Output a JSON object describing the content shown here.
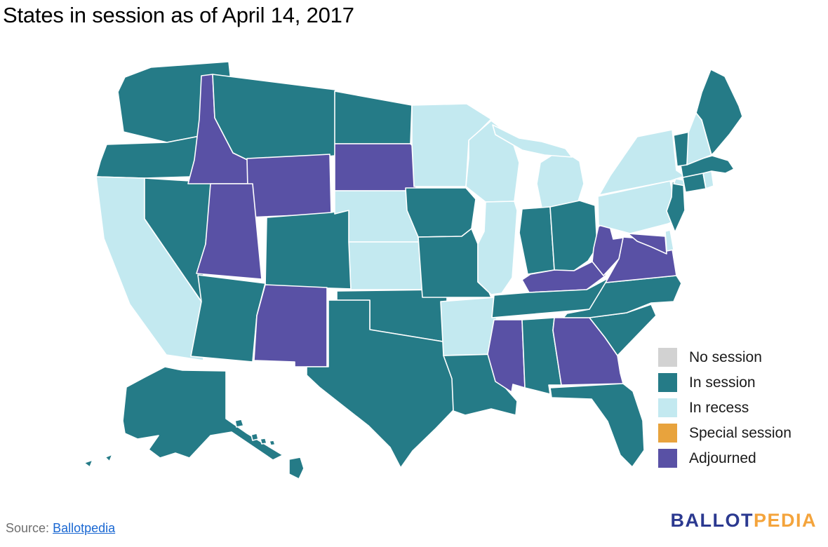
{
  "title": "States in session as of April 14, 2017",
  "legend": {
    "items": [
      {
        "key": "no_session",
        "label": "No session",
        "color": "#d2d2d2"
      },
      {
        "key": "in_session",
        "label": "In session",
        "color": "#257b87"
      },
      {
        "key": "in_recess",
        "label": "In recess",
        "color": "#c3e9f0"
      },
      {
        "key": "special_session",
        "label": "Special session",
        "color": "#e8a33d"
      },
      {
        "key": "adjourned",
        "label": "Adjourned",
        "color": "#5951a5"
      }
    ]
  },
  "map": {
    "border_color": "#ffffff",
    "states": [
      {
        "abbr": "WA",
        "name": "Washington",
        "status": "in_session"
      },
      {
        "abbr": "OR",
        "name": "Oregon",
        "status": "in_session"
      },
      {
        "abbr": "CA",
        "name": "California",
        "status": "in_recess"
      },
      {
        "abbr": "NV",
        "name": "Nevada",
        "status": "in_session"
      },
      {
        "abbr": "ID",
        "name": "Idaho",
        "status": "adjourned"
      },
      {
        "abbr": "MT",
        "name": "Montana",
        "status": "in_session"
      },
      {
        "abbr": "WY",
        "name": "Wyoming",
        "status": "adjourned"
      },
      {
        "abbr": "UT",
        "name": "Utah",
        "status": "adjourned"
      },
      {
        "abbr": "CO",
        "name": "Colorado",
        "status": "in_session"
      },
      {
        "abbr": "AZ",
        "name": "Arizona",
        "status": "in_session"
      },
      {
        "abbr": "NM",
        "name": "New Mexico",
        "status": "adjourned"
      },
      {
        "abbr": "ND",
        "name": "North Dakota",
        "status": "in_session"
      },
      {
        "abbr": "SD",
        "name": "South Dakota",
        "status": "adjourned"
      },
      {
        "abbr": "NE",
        "name": "Nebraska",
        "status": "in_recess"
      },
      {
        "abbr": "KS",
        "name": "Kansas",
        "status": "in_recess"
      },
      {
        "abbr": "OK",
        "name": "Oklahoma",
        "status": "in_session"
      },
      {
        "abbr": "TX",
        "name": "Texas",
        "status": "in_session"
      },
      {
        "abbr": "MN",
        "name": "Minnesota",
        "status": "in_recess"
      },
      {
        "abbr": "IA",
        "name": "Iowa",
        "status": "in_session"
      },
      {
        "abbr": "MO",
        "name": "Missouri",
        "status": "in_session"
      },
      {
        "abbr": "AR",
        "name": "Arkansas",
        "status": "in_recess"
      },
      {
        "abbr": "LA",
        "name": "Louisiana",
        "status": "in_session"
      },
      {
        "abbr": "WI",
        "name": "Wisconsin",
        "status": "in_recess"
      },
      {
        "abbr": "IL",
        "name": "Illinois",
        "status": "in_recess"
      },
      {
        "abbr": "MI",
        "name": "Michigan",
        "status": "in_recess"
      },
      {
        "abbr": "IN",
        "name": "Indiana",
        "status": "in_session"
      },
      {
        "abbr": "OH",
        "name": "Ohio",
        "status": "in_session"
      },
      {
        "abbr": "KY",
        "name": "Kentucky",
        "status": "adjourned"
      },
      {
        "abbr": "TN",
        "name": "Tennessee",
        "status": "in_session"
      },
      {
        "abbr": "MS",
        "name": "Mississippi",
        "status": "adjourned"
      },
      {
        "abbr": "AL",
        "name": "Alabama",
        "status": "in_session"
      },
      {
        "abbr": "GA",
        "name": "Georgia",
        "status": "adjourned"
      },
      {
        "abbr": "FL",
        "name": "Florida",
        "status": "in_session"
      },
      {
        "abbr": "SC",
        "name": "South Carolina",
        "status": "in_session"
      },
      {
        "abbr": "NC",
        "name": "North Carolina",
        "status": "in_session"
      },
      {
        "abbr": "VA",
        "name": "Virginia",
        "status": "adjourned"
      },
      {
        "abbr": "WV",
        "name": "West Virginia",
        "status": "adjourned"
      },
      {
        "abbr": "MD",
        "name": "Maryland",
        "status": "adjourned"
      },
      {
        "abbr": "DE",
        "name": "Delaware",
        "status": "in_recess"
      },
      {
        "abbr": "PA",
        "name": "Pennsylvania",
        "status": "in_recess"
      },
      {
        "abbr": "NJ",
        "name": "New Jersey",
        "status": "in_session"
      },
      {
        "abbr": "NY",
        "name": "New York",
        "status": "in_recess"
      },
      {
        "abbr": "CT",
        "name": "Connecticut",
        "status": "in_session"
      },
      {
        "abbr": "RI",
        "name": "Rhode Island",
        "status": "in_recess"
      },
      {
        "abbr": "MA",
        "name": "Massachusetts",
        "status": "in_session"
      },
      {
        "abbr": "VT",
        "name": "Vermont",
        "status": "in_session"
      },
      {
        "abbr": "NH",
        "name": "New Hampshire",
        "status": "in_recess"
      },
      {
        "abbr": "ME",
        "name": "Maine",
        "status": "in_session"
      },
      {
        "abbr": "AK",
        "name": "Alaska",
        "status": "in_session"
      },
      {
        "abbr": "HI",
        "name": "Hawaii",
        "status": "in_session"
      }
    ]
  },
  "source": {
    "label": "Source:",
    "link_text": "Ballotpedia"
  },
  "logo": {
    "text_primary": "BALLOT",
    "text_secondary": "PEDIA",
    "color_primary": "#2b3990",
    "color_secondary": "#f4a43c"
  }
}
